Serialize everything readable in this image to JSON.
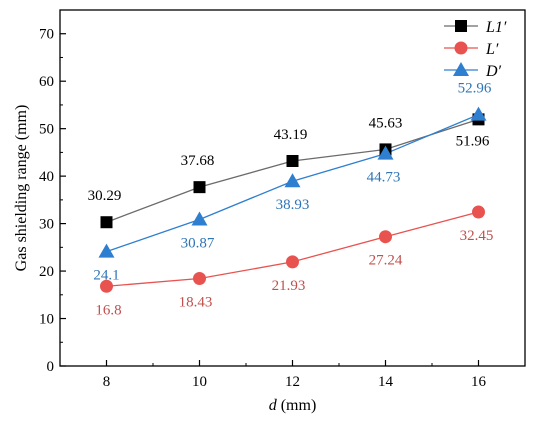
{
  "chart_data": {
    "type": "line",
    "title": "",
    "xlabel_var": "d",
    "xlabel_unit": " (mm)",
    "ylabel": "Gas shielding range (mm)",
    "x": [
      8,
      10,
      12,
      14,
      16
    ],
    "xlim": [
      7,
      17
    ],
    "ylim": [
      0,
      75
    ],
    "xticks": [
      8,
      10,
      12,
      14,
      16
    ],
    "yticks": [
      0,
      10,
      20,
      30,
      40,
      50,
      60,
      70
    ],
    "grid": false,
    "legend_position": "top-right",
    "series": [
      {
        "name": "L1′",
        "color": "#000000",
        "line_color": "#6b6b6b",
        "marker": "square",
        "values": [
          30.29,
          37.68,
          43.19,
          45.63,
          51.96
        ],
        "labels": [
          "30.29",
          "37.68",
          "43.19",
          "45.63",
          "51.96"
        ]
      },
      {
        "name": "L′",
        "color": "#e8534f",
        "line_color": "#e8534f",
        "label_color": "#c0504d",
        "marker": "circle",
        "values": [
          16.8,
          18.43,
          21.93,
          27.24,
          32.45
        ],
        "labels": [
          "16.8",
          "18.43",
          "21.93",
          "27.24",
          "32.45"
        ]
      },
      {
        "name": "D′",
        "color": "#2e7fd0",
        "line_color": "#2e7fd0",
        "label_color": "#2e75b6",
        "marker": "triangle",
        "values": [
          24.1,
          30.87,
          38.93,
          44.73,
          52.96
        ],
        "labels": [
          "24.1",
          "30.87",
          "38.93",
          "44.73",
          "52.96"
        ]
      }
    ]
  }
}
